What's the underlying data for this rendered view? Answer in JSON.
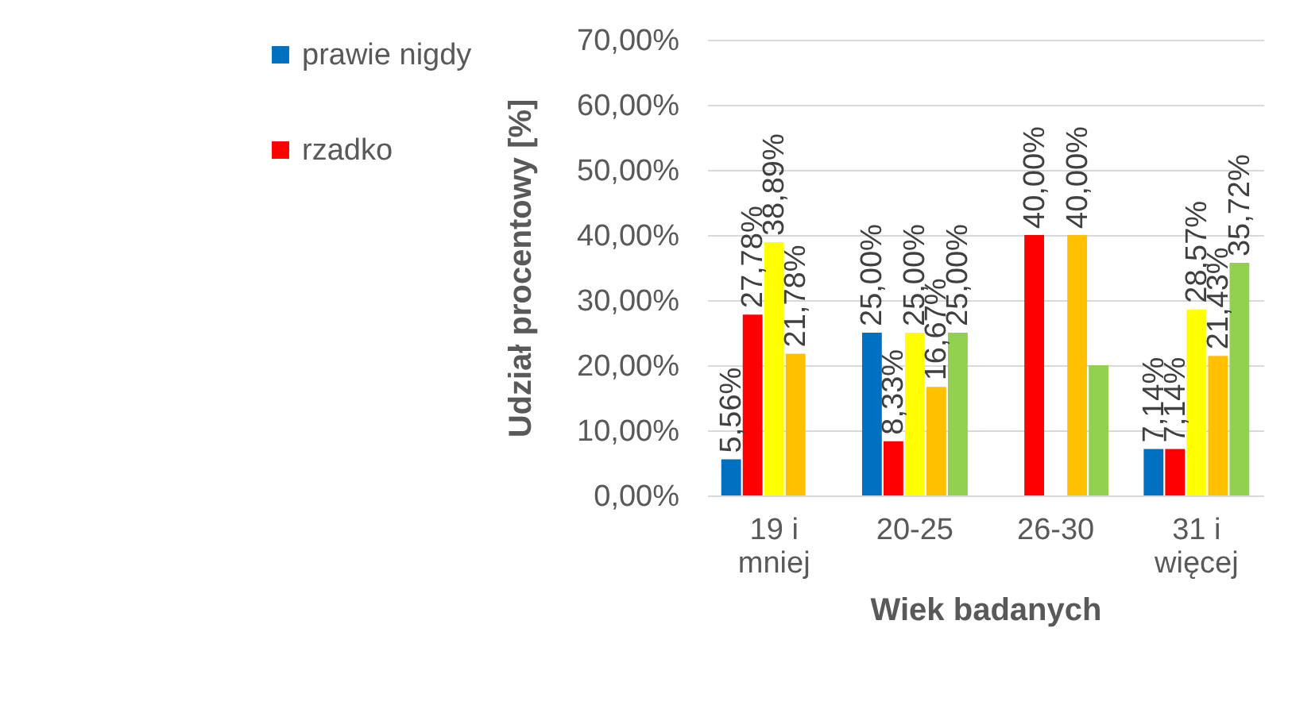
{
  "chart_data": {
    "type": "bar",
    "xlabel": "Wiek badanych",
    "ylabel": "Udział procentowy [%]",
    "categories": [
      "19 i mniej",
      "20-25",
      "26-30",
      "31 i więcej"
    ],
    "series": [
      {
        "name": "prawie nigdy",
        "color": "#0070c0",
        "values": [
          5.56,
          25,
          null,
          7.14
        ],
        "value_labels": [
          "5,56%",
          "25,00%",
          null,
          "7,14%"
        ]
      },
      {
        "name": "rzadko",
        "color": "#ff0000",
        "values": [
          27.78,
          8.33,
          40,
          7.14
        ],
        "value_labels": [
          "27,78%",
          "8,33%",
          "40,00%",
          "7,14%"
        ]
      },
      {
        "color": "#ffff00",
        "values": [
          38.89,
          25,
          null,
          28.57
        ],
        "value_labels": [
          "38,89%",
          "25,00%",
          null,
          "28,57%"
        ]
      },
      {
        "color": "#ffc000",
        "values": [
          21.78,
          16.67,
          40,
          21.43
        ],
        "value_labels": [
          "21,78%",
          "16,67%",
          "40,00%",
          "21,43%"
        ]
      },
      {
        "color": "#92d050",
        "values": [
          null,
          25,
          20,
          35.72
        ],
        "value_labels": [
          null,
          "25,00%",
          null,
          "35,72%"
        ]
      }
    ],
    "ylim": [
      0,
      70
    ],
    "yticks": [
      {
        "value": 0,
        "label": "0,00%"
      },
      {
        "value": 10,
        "label": "10,00%"
      },
      {
        "value": 20,
        "label": "20,00%"
      },
      {
        "value": 30,
        "label": "30,00%"
      },
      {
        "value": 40,
        "label": "40,00%"
      },
      {
        "value": 50,
        "label": "50,00%"
      },
      {
        "value": 60,
        "label": "60,00%"
      },
      {
        "value": 70,
        "label": "70,00%"
      }
    ],
    "grid": "y",
    "legend": "left"
  }
}
